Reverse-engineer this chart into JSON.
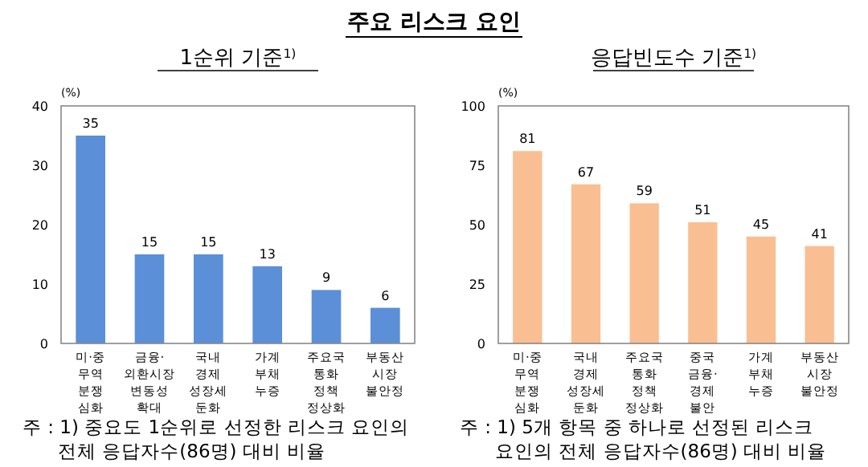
{
  "chart_data": [
    {
      "type": "other",
      "title": "주요 리스크 요인"
    },
    {
      "type": "bar",
      "title": "1순위 기준$^{1)}$",
      "ylabel": "(%)",
      "categories": [
        "미·중\n무역\n분쟁\n심화",
        "금융·\n외환시장\n변동성\n확대",
        "국내\n경제\n성장세\n둔화",
        "가계\n부채\n누증",
        "주요국\n통화\n정책\n정상화",
        "부동산\n시장\n불안정"
      ],
      "values": [
        35,
        15,
        15,
        13,
        9,
        6
      ],
      "color": "#5b8fd8",
      "ylim": [
        0,
        40
      ],
      "yticks": [
        0,
        10,
        20,
        30,
        40
      ],
      "data_labels": true,
      "grid": false,
      "annotations": [
        "주 : 1) 중요도 1순위로 선정한 리스크 요인의 전체 응답자수(86명) 대비 비율"
      ]
    },
    {
      "type": "bar",
      "title": "응답빈도수 기준$^{1)}$",
      "ylabel": "(%)",
      "categories": [
        "미·중\n무역\n분쟁\n심화",
        "국내\n경제\n성장세\n둔화",
        "주요국\n통화\n정책\n정상화",
        "중국\n금융·\n경제\n불안",
        "가계\n부채\n누증",
        "부동산\n시장\n불안정"
      ],
      "values": [
        81,
        67,
        59,
        51,
        45,
        41
      ],
      "color": "#f9bf92",
      "ylim": [
        0,
        100
      ],
      "yticks": [
        0,
        25,
        50,
        75,
        100
      ],
      "data_labels": true,
      "grid": false,
      "annotations": [
        "주 : 1) 5개 항목 중 하나로 선정된 리스크 요인의 전체 응답자수(86명) 대비 비율"
      ]
    }
  ]
}
